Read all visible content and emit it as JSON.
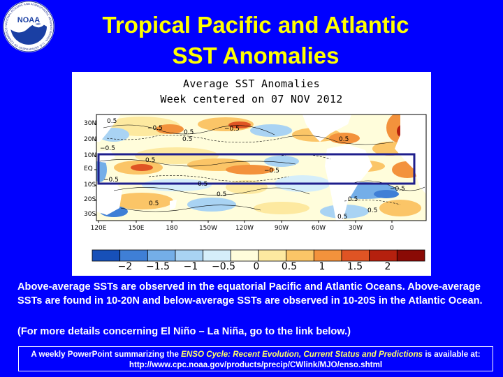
{
  "title": {
    "line1": "Tropical Pacific and Atlantic",
    "line2": "SST Anomalies"
  },
  "logo": {
    "name": "noaa-logo",
    "text": "NOAA",
    "ring_text": "NATIONAL OCEANIC AND ATMOSPHERIC ADMINISTRATION · U.S. DEPARTMENT OF COMMERCE"
  },
  "figure": {
    "title_line1": "Average SST Anomalies",
    "title_line2": "Week centered on 07 NOV 2012",
    "lat_labels": [
      "30N",
      "20N",
      "10N",
      "EQ",
      "10S",
      "20S",
      "30S"
    ],
    "lon_labels": [
      "120E",
      "150E",
      "180",
      "150W",
      "120W",
      "90W",
      "60W",
      "30W",
      "0"
    ],
    "contour_labels": [
      "0.5",
      "−0.5",
      "0.5",
      "−0.5",
      "0.5",
      "0.5",
      "−0.5",
      "−0.5",
      "0.5",
      "−0.5",
      "0.5",
      "0.5",
      "−0.5",
      "0.5",
      "0.5",
      "0.5",
      "0.5"
    ],
    "colorbar": {
      "colors": [
        "#1750b8",
        "#3f7fd6",
        "#74aee8",
        "#a9d3f3",
        "#d5eefa",
        "#fffddb",
        "#fde9a0",
        "#fbc567",
        "#f3923c",
        "#df5424",
        "#b5200e",
        "#8a0a05"
      ],
      "labels": [
        "−2",
        "−1.5",
        "−1",
        "−0.5",
        "0",
        "0.5",
        "1",
        "1.5",
        "2"
      ]
    }
  },
  "description": {
    "paragraph1": "Above-average SSTs are observed in the equatorial Pacific and Atlantic Oceans. Above-average SSTs are found in 10-20N and below-average SSTs are observed in 10-20S in the Atlantic Ocean.",
    "paragraph2": "(For more details concerning El Niño – La Niña, go to the link below.)"
  },
  "footer": {
    "prefix": "A weekly PowerPoint summarizing the ",
    "link_text": "ENSO Cycle: Recent Evolution, Current Status and Predictions",
    "suffix": " is available at:",
    "url": "http://www.cpc.noaa.gov/products/precip/CWlink/MJO/enso.shtml"
  }
}
